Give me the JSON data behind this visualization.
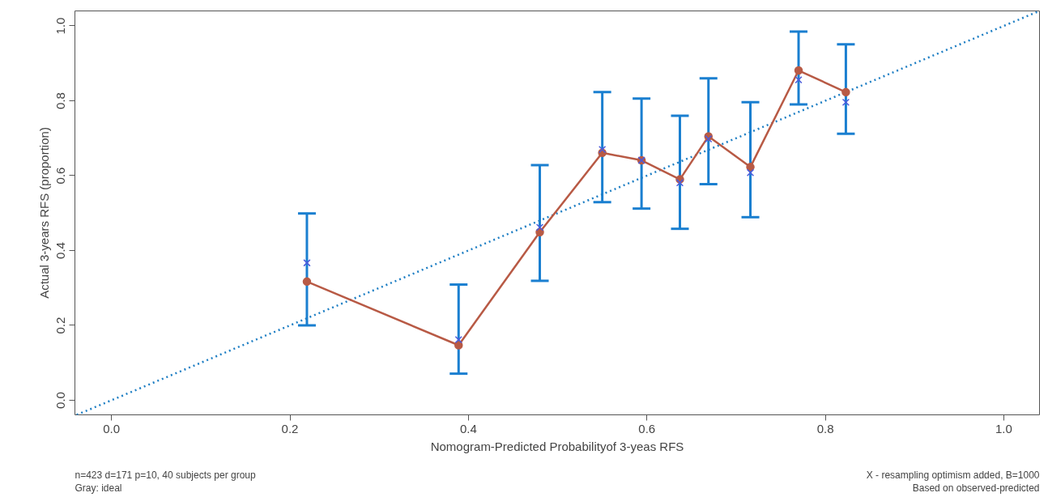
{
  "chart_data": {
    "type": "line",
    "xlabel": "Nomogram-Predicted Probabilityof 3-yeas RFS",
    "ylabel": "Actual 3-years RFS (proportion)",
    "xlim": [
      -0.041,
      1.04
    ],
    "ylim": [
      -0.039,
      1.04
    ],
    "xticks": [
      {
        "value": 0,
        "label": "0.0"
      },
      0.2,
      0.4,
      0.6,
      0.8,
      {
        "value": 1,
        "label": "1.0"
      }
    ],
    "yticks": [
      {
        "value": 0,
        "label": "0.0"
      },
      0.2,
      0.4,
      0.6,
      0.8,
      {
        "value": 1,
        "label": "1.0"
      }
    ],
    "grid": false,
    "series": [
      {
        "type": "line",
        "color": "#1f7fc4",
        "line_style": "dotted",
        "marker": "none",
        "x": [
          -0.039,
          1.04
        ],
        "values": [
          -0.039,
          1.04
        ]
      },
      {
        "color": "#b85a45",
        "line_style": "solid",
        "marker": "circle",
        "x": [
          0.219,
          0.389,
          0.48,
          0.55,
          0.594,
          0.637,
          0.669,
          0.716,
          0.77,
          0.823
        ],
        "values": [
          0.317,
          0.147,
          0.449,
          0.661,
          0.641,
          0.59,
          0.705,
          0.623,
          0.881,
          0.823
        ],
        "errors": [
          [
            0.2,
            0.499
          ],
          [
            0.071,
            0.309
          ],
          [
            0.319,
            0.628
          ],
          [
            0.529,
            0.823
          ],
          [
            0.512,
            0.806
          ],
          [
            0.458,
            0.76
          ],
          [
            0.577,
            0.86
          ],
          [
            0.489,
            0.796
          ],
          [
            0.79,
            0.985
          ],
          [
            0.712,
            0.951
          ]
        ]
      },
      {
        "type": "scatter",
        "color": "#4b5bdc",
        "marker": "cross",
        "x": [
          0.219,
          0.389,
          0.48,
          0.55,
          0.594,
          0.637,
          0.669,
          0.716,
          0.77,
          0.823
        ],
        "values": [
          0.367,
          0.162,
          0.462,
          0.67,
          0.641,
          0.581,
          0.698,
          0.608,
          0.856,
          0.796
        ]
      }
    ],
    "annotations": [
      "n=423 d=171 p=10, 40 subjects per group",
      "Gray: ideal",
      "X - resampling optimism added, B=1000",
      "Based on observed-predicted"
    ]
  }
}
